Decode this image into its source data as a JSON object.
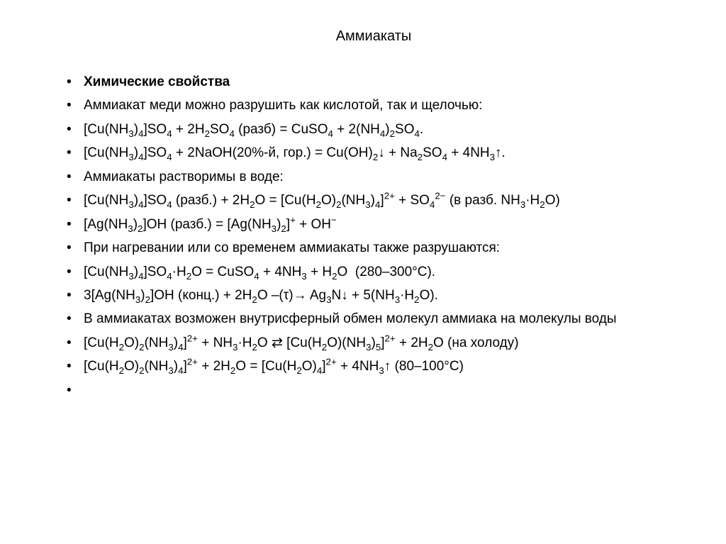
{
  "title": "Аммиакаты",
  "items": [
    {
      "bold": true,
      "html": "Химические свойства"
    },
    {
      "html": "Аммиакат меди можно разрушить как кислотой, так и щелочью:"
    },
    {
      "html": "[Cu(NH<sub>3</sub>)<sub>4</sub>]SO<sub>4</sub> + 2H<sub>2</sub>SO<sub>4</sub> (разб) = CuSO<sub>4</sub> + 2(NH<sub>4</sub>)<sub>2</sub>SO<sub>4</sub>."
    },
    {
      "html": "[Cu(NH<sub>3</sub>)<sub>4</sub>]SO<sub>4</sub> + 2NaOH(20%-й, гор.) = Cu(OH)<sub>2</sub>↓ + Na<sub>2</sub>SO<sub>4</sub> + 4NH<sub>3</sub>↑."
    },
    {
      "html": "Аммиакаты растворимы в воде:"
    },
    {
      "html": "[Cu(NH<sub>3</sub>)<sub>4</sub>]SO<sub>4</sub> (разб.) + 2H<sub>2</sub>O = [Cu(H<sub>2</sub>O)<sub>2</sub>(NH<sub>3</sub>)<sub>4</sub>]<sup>2+</sup> + SO<sub>4</sub><sup>2−</sup> (в разб. NH<sub>3</sub>·H<sub>2</sub>O)"
    },
    {
      "html": "[Ag(NH<sub>3</sub>)<sub>2</sub>]OH (разб.) = [Ag(NH<sub>3</sub>)<sub>2</sub>]<sup>+</sup> + OH<sup>−</sup>"
    },
    {
      "html": "При нагревании или со временем аммиакаты также разрушаются:"
    },
    {
      "html": "[Cu(NH<sub>3</sub>)<sub>4</sub>]SO<sub>4</sub>·H<sub>2</sub>O = CuSO<sub>4</sub> + 4NH<sub>3</sub> + H<sub>2</sub>O&nbsp;&nbsp;(280–300°C)."
    },
    {
      "html": "3[Ag(NH<sub>3</sub>)<sub>2</sub>]OH (конц.) + 2H<sub>2</sub>O –(τ)→ Ag<sub>3</sub>N↓ + 5(NH<sub>3</sub>·H<sub>2</sub>O)."
    },
    {
      "html": "В аммиакатах возможен внутрисферный обмен молекул аммиака на молекулы воды"
    },
    {
      "html": "[Cu(H<sub>2</sub>O)<sub>2</sub>(NH<sub>3</sub>)<sub>4</sub>]<sup>2+</sup> + NH<sub>3</sub>·H<sub>2</sub>O ⇄ [Cu(H<sub>2</sub>O)(NH<sub>3</sub>)<sub>5</sub>]<sup>2+</sup> + 2H<sub>2</sub>O (на холоду)"
    },
    {
      "html": "[Cu(H<sub>2</sub>O)<sub>2</sub>(NH<sub>3</sub>)<sub>4</sub>]<sup>2+</sup> + 2H<sub>2</sub>O = [Cu(H<sub>2</sub>O)<sub>4</sub>]<sup>2+</sup> + 4NH<sub>3</sub>↑ (80–100°C)"
    },
    {
      "html": ""
    }
  ],
  "style": {
    "background_color": "#ffffff",
    "text_color": "#000000",
    "title_fontsize": 20,
    "body_fontsize": 19,
    "font_family": "Arial"
  }
}
